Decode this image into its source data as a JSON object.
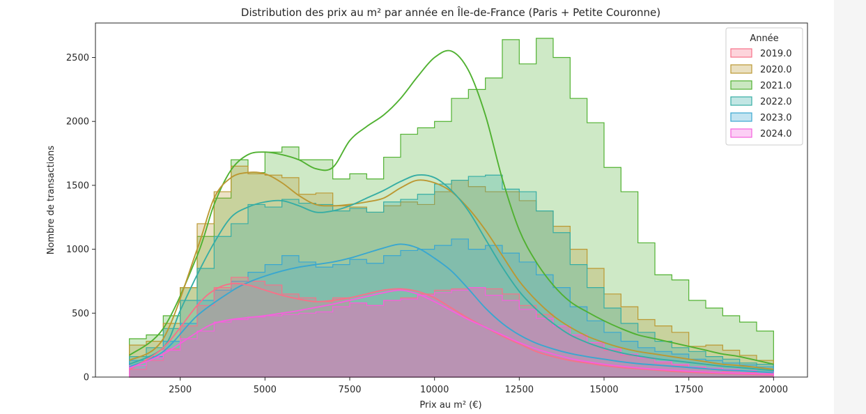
{
  "chart_data": {
    "type": "histogram",
    "title": "Distribution des prix au m² par année en Île-de-France (Paris + Petite Couronne)",
    "xlabel": "Prix au m² (€)",
    "ylabel": "Nombre de transactions",
    "xlim": [
      0,
      21000
    ],
    "ylim": [
      0,
      2770
    ],
    "xticks": [
      2500,
      5000,
      7500,
      10000,
      12500,
      15000,
      17500,
      20000
    ],
    "yticks": [
      0,
      500,
      1000,
      1500,
      2000,
      2500
    ],
    "bins": {
      "start": 1000,
      "width": 500,
      "count": 38
    },
    "legend": {
      "title": "Année",
      "position": "top-right"
    },
    "series": [
      {
        "name": "2021.0",
        "color": "#50b131",
        "curve": [
          [
            1000,
            170
          ],
          [
            2000,
            380
          ],
          [
            3000,
            950
          ],
          [
            3500,
            1350
          ],
          [
            4000,
            1620
          ],
          [
            4500,
            1740
          ],
          [
            5000,
            1760
          ],
          [
            5500,
            1740
          ],
          [
            6000,
            1700
          ],
          [
            6500,
            1630
          ],
          [
            7000,
            1640
          ],
          [
            7500,
            1850
          ],
          [
            8000,
            1960
          ],
          [
            8500,
            2050
          ],
          [
            9000,
            2180
          ],
          [
            9500,
            2350
          ],
          [
            10000,
            2500
          ],
          [
            10500,
            2550
          ],
          [
            11000,
            2400
          ],
          [
            11500,
            2050
          ],
          [
            12000,
            1550
          ],
          [
            12500,
            1150
          ],
          [
            13000,
            900
          ],
          [
            13500,
            720
          ],
          [
            14000,
            590
          ],
          [
            14500,
            510
          ],
          [
            15000,
            440
          ],
          [
            15500,
            380
          ],
          [
            16000,
            330
          ],
          [
            16500,
            300
          ],
          [
            17000,
            270
          ],
          [
            17500,
            240
          ],
          [
            18000,
            210
          ],
          [
            18500,
            180
          ],
          [
            19000,
            160
          ],
          [
            20000,
            100
          ]
        ],
        "bars": [
          300,
          330,
          480,
          700,
          1100,
          1400,
          1700,
          1600,
          1760,
          1800,
          1700,
          1700,
          1550,
          1590,
          1550,
          1720,
          1900,
          1950,
          2000,
          2180,
          2250,
          2340,
          2640,
          2450,
          2650,
          2500,
          2180,
          1990,
          1640,
          1450,
          1050,
          800,
          760,
          600,
          540,
          480,
          430,
          360
        ]
      },
      {
        "name": "2020.0",
        "color": "#bb9832",
        "curve": [
          [
            1000,
            130
          ],
          [
            2000,
            300
          ],
          [
            3000,
            1000
          ],
          [
            3500,
            1400
          ],
          [
            4000,
            1560
          ],
          [
            4500,
            1600
          ],
          [
            5000,
            1590
          ],
          [
            5500,
            1520
          ],
          [
            6000,
            1420
          ],
          [
            6500,
            1350
          ],
          [
            7000,
            1340
          ],
          [
            7500,
            1350
          ],
          [
            8000,
            1370
          ],
          [
            8500,
            1400
          ],
          [
            9000,
            1480
          ],
          [
            9500,
            1540
          ],
          [
            10000,
            1520
          ],
          [
            10500,
            1450
          ],
          [
            11000,
            1320
          ],
          [
            11500,
            1150
          ],
          [
            12000,
            950
          ],
          [
            12500,
            750
          ],
          [
            13000,
            600
          ],
          [
            13500,
            480
          ],
          [
            14000,
            390
          ],
          [
            14500,
            320
          ],
          [
            15000,
            270
          ],
          [
            15500,
            230
          ],
          [
            16000,
            200
          ],
          [
            16500,
            180
          ],
          [
            17000,
            160
          ],
          [
            17500,
            140
          ],
          [
            18000,
            120
          ],
          [
            18500,
            100
          ],
          [
            19000,
            90
          ],
          [
            20000,
            60
          ]
        ],
        "bars": [
          250,
          280,
          420,
          700,
          1200,
          1450,
          1650,
          1590,
          1580,
          1560,
          1430,
          1440,
          1340,
          1330,
          1290,
          1340,
          1370,
          1350,
          1450,
          1540,
          1490,
          1450,
          1450,
          1380,
          1300,
          1180,
          1000,
          850,
          650,
          550,
          450,
          400,
          350,
          240,
          250,
          210,
          170,
          130
        ]
      },
      {
        "name": "2022.0",
        "color": "#36ada4",
        "curve": [
          [
            1000,
            100
          ],
          [
            2000,
            230
          ],
          [
            2500,
            520
          ],
          [
            3000,
            800
          ],
          [
            3500,
            1050
          ],
          [
            4000,
            1250
          ],
          [
            4500,
            1330
          ],
          [
            5000,
            1370
          ],
          [
            5500,
            1380
          ],
          [
            6000,
            1340
          ],
          [
            6500,
            1290
          ],
          [
            7000,
            1300
          ],
          [
            7500,
            1340
          ],
          [
            8000,
            1400
          ],
          [
            8500,
            1460
          ],
          [
            9000,
            1530
          ],
          [
            9500,
            1580
          ],
          [
            10000,
            1560
          ],
          [
            10500,
            1460
          ],
          [
            11000,
            1300
          ],
          [
            11500,
            1080
          ],
          [
            12000,
            860
          ],
          [
            12500,
            670
          ],
          [
            13000,
            530
          ],
          [
            13500,
            420
          ],
          [
            14000,
            330
          ],
          [
            14500,
            270
          ],
          [
            15000,
            225
          ],
          [
            15500,
            190
          ],
          [
            16000,
            165
          ],
          [
            16500,
            145
          ],
          [
            17000,
            130
          ],
          [
            17500,
            115
          ],
          [
            18000,
            100
          ],
          [
            18500,
            85
          ],
          [
            19000,
            75
          ],
          [
            20000,
            50
          ]
        ],
        "bars": [
          160,
          230,
          380,
          600,
          850,
          1100,
          1200,
          1350,
          1330,
          1390,
          1360,
          1350,
          1300,
          1320,
          1290,
          1370,
          1390,
          1430,
          1510,
          1540,
          1570,
          1580,
          1470,
          1450,
          1300,
          1130,
          880,
          700,
          540,
          420,
          350,
          280,
          230,
          200,
          160,
          140,
          110,
          100
        ]
      },
      {
        "name": "2023.0",
        "color": "#39a7d0",
        "curve": [
          [
            1000,
            80
          ],
          [
            2000,
            200
          ],
          [
            3000,
            480
          ],
          [
            4000,
            670
          ],
          [
            4500,
            740
          ],
          [
            5000,
            790
          ],
          [
            5500,
            830
          ],
          [
            6000,
            860
          ],
          [
            6500,
            880
          ],
          [
            7000,
            900
          ],
          [
            7500,
            930
          ],
          [
            8000,
            970
          ],
          [
            8500,
            1010
          ],
          [
            9000,
            1040
          ],
          [
            9500,
            1010
          ],
          [
            10000,
            930
          ],
          [
            10500,
            830
          ],
          [
            11000,
            690
          ],
          [
            11500,
            540
          ],
          [
            12000,
            420
          ],
          [
            12500,
            330
          ],
          [
            13000,
            265
          ],
          [
            13500,
            220
          ],
          [
            14000,
            185
          ],
          [
            14500,
            160
          ],
          [
            15000,
            140
          ],
          [
            15500,
            120
          ],
          [
            16000,
            105
          ],
          [
            16500,
            95
          ],
          [
            17000,
            85
          ],
          [
            17500,
            75
          ],
          [
            18000,
            65
          ],
          [
            18500,
            55
          ],
          [
            19000,
            50
          ],
          [
            20000,
            35
          ]
        ],
        "bars": [
          130,
          160,
          280,
          420,
          600,
          680,
          750,
          820,
          880,
          950,
          900,
          860,
          880,
          920,
          890,
          950,
          990,
          1000,
          1030,
          1080,
          1000,
          1030,
          970,
          900,
          800,
          700,
          550,
          440,
          350,
          280,
          230,
          200,
          180,
          140,
          130,
          110,
          95,
          80
        ]
      },
      {
        "name": "2019.0",
        "color": "#f77189",
        "curve": [
          [
            1000,
            60
          ],
          [
            2000,
            230
          ],
          [
            3000,
            560
          ],
          [
            3500,
            680
          ],
          [
            4000,
            730
          ],
          [
            4500,
            720
          ],
          [
            5000,
            680
          ],
          [
            5500,
            640
          ],
          [
            6000,
            610
          ],
          [
            6500,
            590
          ],
          [
            7000,
            600
          ],
          [
            7500,
            620
          ],
          [
            8000,
            650
          ],
          [
            8500,
            680
          ],
          [
            9000,
            690
          ],
          [
            9500,
            670
          ],
          [
            10000,
            620
          ],
          [
            10500,
            540
          ],
          [
            11000,
            460
          ],
          [
            11500,
            390
          ],
          [
            12000,
            320
          ],
          [
            12500,
            260
          ],
          [
            13000,
            200
          ],
          [
            13500,
            160
          ],
          [
            14000,
            130
          ],
          [
            14500,
            110
          ],
          [
            15000,
            90
          ],
          [
            15500,
            75
          ],
          [
            16000,
            65
          ],
          [
            16500,
            55
          ],
          [
            17000,
            45
          ],
          [
            17500,
            38
          ],
          [
            18000,
            32
          ],
          [
            18500,
            28
          ],
          [
            19000,
            24
          ],
          [
            20000,
            16
          ]
        ],
        "bars": [
          60,
          130,
          220,
          400,
          560,
          700,
          780,
          750,
          720,
          650,
          620,
          590,
          620,
          580,
          560,
          600,
          620,
          650,
          680,
          690,
          700,
          690,
          650,
          560,
          490,
          400,
          330,
          270,
          210,
          170,
          150,
          110,
          90,
          75,
          60,
          45,
          35,
          28
        ]
      },
      {
        "name": "2024.0",
        "color": "#f561dd",
        "curve": [
          [
            1000,
            70
          ],
          [
            2000,
            180
          ],
          [
            3000,
            350
          ],
          [
            3500,
            420
          ],
          [
            4000,
            450
          ],
          [
            4500,
            465
          ],
          [
            5000,
            480
          ],
          [
            5500,
            500
          ],
          [
            6000,
            520
          ],
          [
            6500,
            545
          ],
          [
            7000,
            570
          ],
          [
            7500,
            600
          ],
          [
            8000,
            630
          ],
          [
            8500,
            660
          ],
          [
            9000,
            680
          ],
          [
            9500,
            650
          ],
          [
            10000,
            590
          ],
          [
            10500,
            520
          ],
          [
            11000,
            450
          ],
          [
            11500,
            390
          ],
          [
            12000,
            330
          ],
          [
            12500,
            270
          ],
          [
            13000,
            220
          ],
          [
            13500,
            180
          ],
          [
            14000,
            145
          ],
          [
            14500,
            120
          ],
          [
            15000,
            100
          ],
          [
            15500,
            85
          ],
          [
            16000,
            72
          ],
          [
            16500,
            62
          ],
          [
            17000,
            54
          ],
          [
            17500,
            46
          ],
          [
            18000,
            40
          ],
          [
            18500,
            34
          ],
          [
            19000,
            30
          ],
          [
            20000,
            22
          ]
        ],
        "bars": [
          90,
          150,
          210,
          300,
          360,
          430,
          450,
          470,
          480,
          490,
          500,
          510,
          550,
          580,
          560,
          600,
          610,
          640,
          660,
          680,
          700,
          640,
          600,
          530,
          460,
          400,
          330,
          270,
          220,
          180,
          150,
          120,
          100,
          80,
          70,
          60,
          50,
          40
        ]
      }
    ]
  }
}
